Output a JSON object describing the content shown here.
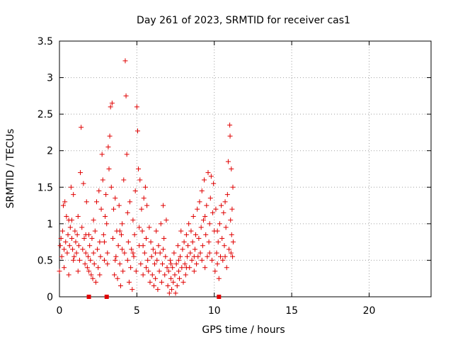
{
  "chart_data": {
    "type": "scatter",
    "title": "Day 261 of 2023, SRMTID for receiver cas1",
    "xlabel": "GPS time / hours",
    "ylabel": "SRMTID / TECUs",
    "xlim": [
      0,
      24
    ],
    "ylim": [
      0,
      3.5
    ],
    "xticks": [
      0,
      5,
      10,
      15,
      20
    ],
    "xtick_labels": [
      "0",
      "5",
      "10",
      "15",
      "20"
    ],
    "yticks": [
      0,
      0.5,
      1,
      1.5,
      2,
      2.5,
      3,
      3.5
    ],
    "ytick_labels": [
      "0",
      "0.5",
      "1",
      "1.5",
      "2",
      "2.5",
      "3",
      "3.5"
    ],
    "grid": true,
    "marker": "+",
    "series": [
      {
        "name": "cas1",
        "color": "#e00000",
        "points": [
          [
            0.0,
            0.35
          ],
          [
            0.05,
            0.7
          ],
          [
            0.1,
            0.8
          ],
          [
            0.15,
            0.55
          ],
          [
            0.2,
            0.9
          ],
          [
            0.25,
            1.25
          ],
          [
            0.3,
            0.65
          ],
          [
            0.35,
            1.3
          ],
          [
            0.4,
            0.75
          ],
          [
            0.45,
            1.1
          ],
          [
            0.5,
            0.6
          ],
          [
            0.55,
            0.85
          ],
          [
            0.6,
            1.05
          ],
          [
            0.65,
            0.7
          ],
          [
            0.7,
            0.95
          ],
          [
            0.75,
            1.5
          ],
          [
            0.8,
            0.8
          ],
          [
            0.85,
            0.65
          ],
          [
            0.9,
            1.4
          ],
          [
            0.95,
            0.55
          ],
          [
            1.0,
            0.9
          ],
          [
            1.05,
            0.75
          ],
          [
            1.1,
            0.6
          ],
          [
            1.15,
            0.85
          ],
          [
            1.2,
            1.1
          ],
          [
            1.25,
            0.7
          ],
          [
            1.3,
            0.5
          ],
          [
            1.35,
            1.7
          ],
          [
            1.4,
            2.32
          ],
          [
            1.45,
            0.95
          ],
          [
            1.5,
            0.65
          ],
          [
            1.55,
            1.55
          ],
          [
            1.6,
            0.8
          ],
          [
            1.65,
            0.45
          ],
          [
            1.7,
            0.6
          ],
          [
            1.75,
            1.3
          ],
          [
            1.8,
            0.4
          ],
          [
            1.85,
            0.55
          ],
          [
            1.9,
            0.35
          ],
          [
            1.95,
            0.7
          ],
          [
            2.0,
            0.5
          ],
          [
            2.05,
            0.3
          ],
          [
            2.1,
            0.8
          ],
          [
            2.15,
            0.25
          ],
          [
            2.2,
            0.6
          ],
          [
            2.25,
            0.45
          ],
          [
            2.3,
            0.9
          ],
          [
            2.35,
            0.2
          ],
          [
            2.4,
            1.3
          ],
          [
            2.45,
            0.65
          ],
          [
            2.5,
            0.4
          ],
          [
            2.55,
            1.45
          ],
          [
            2.6,
            0.75
          ],
          [
            2.65,
            0.55
          ],
          [
            2.7,
            1.2
          ],
          [
            2.75,
            1.95
          ],
          [
            2.8,
            1.6
          ],
          [
            2.85,
            0.85
          ],
          [
            2.9,
            0.5
          ],
          [
            2.95,
            1.1
          ],
          [
            3.0,
            1.4
          ],
          [
            3.05,
            1.0
          ],
          [
            3.1,
            0.6
          ],
          [
            3.15,
            2.05
          ],
          [
            3.2,
            1.75
          ],
          [
            3.25,
            2.2
          ],
          [
            3.3,
            2.6
          ],
          [
            3.35,
            1.5
          ],
          [
            3.4,
            2.65
          ],
          [
            3.45,
            0.8
          ],
          [
            3.5,
            1.2
          ],
          [
            3.55,
            0.3
          ],
          [
            3.6,
            1.35
          ],
          [
            3.65,
            0.55
          ],
          [
            3.7,
            0.9
          ],
          [
            3.75,
            0.25
          ],
          [
            3.8,
            0.7
          ],
          [
            3.85,
            1.25
          ],
          [
            3.9,
            0.45
          ],
          [
            3.95,
            0.15
          ],
          [
            4.0,
            0.85
          ],
          [
            4.05,
            1.0
          ],
          [
            4.1,
            0.35
          ],
          [
            4.15,
            1.6
          ],
          [
            4.2,
            0.6
          ],
          [
            4.25,
            3.23
          ],
          [
            4.3,
            2.75
          ],
          [
            4.35,
            1.95
          ],
          [
            4.4,
            0.5
          ],
          [
            4.45,
            0.75
          ],
          [
            4.5,
            0.2
          ],
          [
            4.55,
            1.3
          ],
          [
            4.6,
            0.4
          ],
          [
            4.65,
            0.65
          ],
          [
            4.7,
            0.1
          ],
          [
            4.75,
            1.05
          ],
          [
            4.8,
            0.55
          ],
          [
            4.85,
            0.85
          ],
          [
            4.9,
            1.45
          ],
          [
            4.95,
            0.35
          ],
          [
            5.0,
            2.6
          ],
          [
            5.05,
            2.27
          ],
          [
            5.1,
            1.75
          ],
          [
            5.15,
            0.7
          ],
          [
            5.2,
            1.6
          ],
          [
            5.25,
            0.45
          ],
          [
            5.3,
            1.2
          ],
          [
            5.35,
            0.9
          ],
          [
            5.4,
            0.3
          ],
          [
            5.45,
            1.35
          ],
          [
            5.5,
            0.6
          ],
          [
            5.55,
            1.5
          ],
          [
            5.6,
            0.8
          ],
          [
            5.65,
            1.25
          ],
          [
            5.7,
            0.5
          ],
          [
            5.75,
            0.35
          ],
          [
            5.8,
            0.95
          ],
          [
            5.85,
            0.2
          ],
          [
            5.9,
            0.75
          ],
          [
            5.95,
            0.55
          ],
          [
            6.0,
            0.3
          ],
          [
            6.05,
            0.65
          ],
          [
            6.1,
            0.15
          ],
          [
            6.15,
            0.45
          ],
          [
            6.2,
            0.25
          ],
          [
            6.25,
            0.9
          ],
          [
            6.3,
            0.5
          ],
          [
            6.35,
            0.1
          ],
          [
            6.4,
            0.7
          ],
          [
            6.45,
            0.35
          ],
          [
            6.5,
            0.6
          ],
          [
            6.55,
            1.0
          ],
          [
            6.6,
            0.2
          ],
          [
            6.65,
            0.45
          ],
          [
            6.7,
            1.25
          ],
          [
            6.75,
            0.8
          ],
          [
            6.8,
            0.3
          ],
          [
            6.85,
            0.55
          ],
          [
            6.9,
            1.05
          ],
          [
            6.95,
            0.4
          ],
          [
            7.0,
            0.15
          ],
          [
            7.05,
            0.35
          ],
          [
            7.1,
            0.05
          ],
          [
            7.15,
            0.5
          ],
          [
            7.2,
            0.25
          ],
          [
            7.25,
            0.1
          ],
          [
            7.3,
            0.4
          ],
          [
            7.35,
            0.2
          ],
          [
            7.4,
            0.6
          ],
          [
            7.45,
            0.3
          ],
          [
            7.5,
            0.05
          ],
          [
            7.55,
            0.45
          ],
          [
            7.6,
            0.15
          ],
          [
            7.65,
            0.7
          ],
          [
            7.7,
            0.35
          ],
          [
            7.75,
            0.25
          ],
          [
            7.8,
            0.55
          ],
          [
            7.85,
            0.9
          ],
          [
            7.9,
            0.4
          ],
          [
            7.95,
            0.65
          ],
          [
            8.0,
            0.2
          ],
          [
            8.05,
            0.75
          ],
          [
            8.1,
            0.45
          ],
          [
            8.15,
            0.3
          ],
          [
            8.2,
            0.85
          ],
          [
            8.25,
            0.55
          ],
          [
            8.3,
            0.7
          ],
          [
            8.35,
            1.0
          ],
          [
            8.4,
            0.4
          ],
          [
            8.45,
            0.6
          ],
          [
            8.5,
            0.9
          ],
          [
            8.55,
            0.5
          ],
          [
            8.6,
            0.75
          ],
          [
            8.65,
            1.1
          ],
          [
            8.7,
            0.35
          ],
          [
            8.75,
            0.65
          ],
          [
            8.8,
            0.85
          ],
          [
            8.85,
            0.45
          ],
          [
            8.9,
            1.2
          ],
          [
            8.95,
            0.55
          ],
          [
            9.0,
            0.8
          ],
          [
            9.05,
            1.3
          ],
          [
            9.1,
            0.6
          ],
          [
            9.15,
            0.95
          ],
          [
            9.2,
            1.45
          ],
          [
            9.25,
            0.7
          ],
          [
            9.3,
            1.05
          ],
          [
            9.35,
            1.6
          ],
          [
            9.4,
            0.4
          ],
          [
            9.45,
            0.85
          ],
          [
            9.5,
            1.25
          ],
          [
            9.55,
            0.55
          ],
          [
            9.6,
            1.7
          ],
          [
            9.65,
            0.75
          ],
          [
            9.7,
            1.0
          ],
          [
            9.75,
            1.35
          ],
          [
            9.8,
            1.65
          ],
          [
            9.85,
            0.5
          ],
          [
            9.9,
            1.15
          ],
          [
            9.95,
            1.55
          ],
          [
            10.0,
            0.9
          ],
          [
            10.05,
            0.35
          ],
          [
            10.1,
            1.2
          ],
          [
            10.15,
            0.6
          ],
          [
            10.2,
            0.45
          ],
          [
            10.25,
            0.75
          ],
          [
            10.3,
            0.25
          ],
          [
            10.35,
            1.0
          ],
          [
            10.4,
            0.55
          ],
          [
            10.45,
            1.25
          ],
          [
            10.5,
            0.8
          ],
          [
            10.55,
            0.5
          ],
          [
            10.6,
            1.15
          ],
          [
            10.65,
            0.7
          ],
          [
            10.7,
            1.3
          ],
          [
            10.75,
            0.95
          ],
          [
            10.8,
            0.4
          ],
          [
            10.85,
            1.4
          ],
          [
            10.9,
            1.85
          ],
          [
            10.95,
            0.65
          ],
          [
            11.0,
            2.35
          ],
          [
            11.02,
            2.2
          ],
          [
            11.05,
            1.05
          ],
          [
            11.08,
            0.6
          ],
          [
            11.1,
            1.75
          ],
          [
            11.12,
            0.85
          ],
          [
            11.15,
            1.2
          ],
          [
            11.18,
            0.55
          ],
          [
            11.2,
            1.5
          ],
          [
            11.22,
            0.75
          ],
          [
            0.3,
            0.4
          ],
          [
            0.6,
            0.3
          ],
          [
            0.9,
            0.5
          ],
          [
            1.2,
            0.35
          ],
          [
            1.7,
            0.85
          ],
          [
            2.2,
            1.05
          ],
          [
            2.6,
            0.3
          ],
          [
            3.1,
            0.45
          ],
          [
            3.6,
            0.5
          ],
          [
            4.05,
            0.65
          ],
          [
            4.4,
            1.15
          ],
          [
            4.75,
            0.6
          ],
          [
            5.15,
            0.95
          ],
          [
            5.6,
            0.4
          ],
          [
            6.2,
            0.6
          ],
          [
            6.7,
            0.65
          ],
          [
            7.2,
            0.45
          ],
          [
            7.7,
            0.5
          ],
          [
            8.2,
            0.4
          ],
          [
            8.7,
            0.55
          ],
          [
            9.2,
            0.5
          ],
          [
            9.7,
            0.6
          ],
          [
            10.2,
            0.9
          ],
          [
            10.7,
            0.55
          ],
          [
            0.8,
            1.05
          ],
          [
            1.9,
            0.85
          ],
          [
            2.9,
            0.75
          ],
          [
            3.9,
            0.9
          ],
          [
            5.4,
            0.7
          ],
          [
            9.4,
            1.1
          ]
        ]
      }
    ],
    "zero_markers_x": [
      1.9,
      3.05,
      10.3
    ]
  }
}
